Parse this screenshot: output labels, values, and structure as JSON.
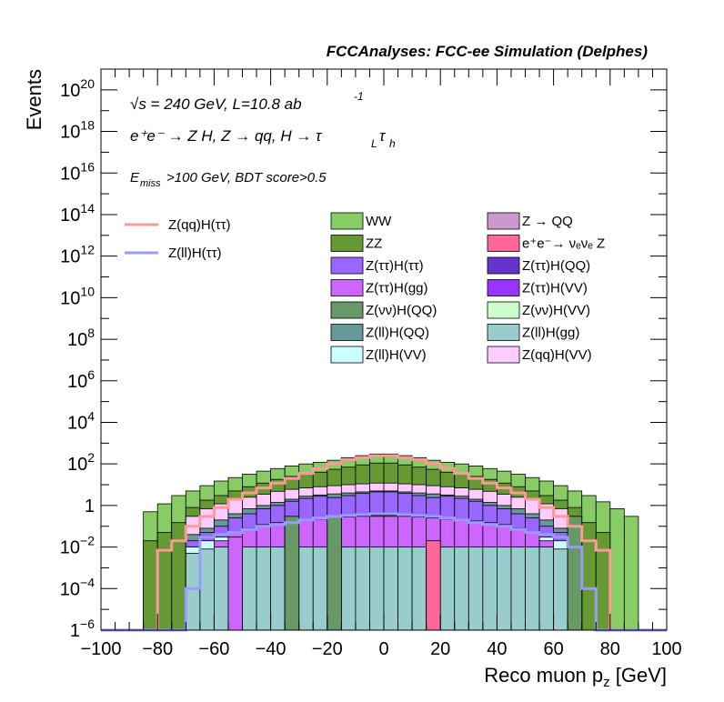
{
  "header": {
    "title": "FCCAnalyses: FCC-ee Simulation (Delphes)"
  },
  "annotations": {
    "sqrt_s": "√s = 240 GeV, L=10.8 ab",
    "lumi_exp": "-1",
    "process": "e⁺e⁻ → Z H, Z → qq, H → τ",
    "tau1_sub": "L",
    "tau2": "τ",
    "tau2_sub": "h",
    "cuts_main": "E",
    "cuts_sub": "miss",
    "cuts_rest": ">100 GeV, BDT score>0.5"
  },
  "chart_data": {
    "type": "histogram-stacked",
    "title": "FCCAnalyses: FCC-ee Simulation (Delphes)",
    "xlabel": "Reco muon p_z [GeV]",
    "ylabel": "Events",
    "xlim": [
      -100,
      100
    ],
    "ylim": [
      1e-06,
      1e+21
    ],
    "yscale": "log",
    "bin_width": 5,
    "bins_lo": [
      -100,
      -95,
      -90,
      -85,
      -80,
      -75,
      -70,
      -65,
      -60,
      -55,
      -50,
      -45,
      -40,
      -35,
      -30,
      -25,
      -20,
      -15,
      -10,
      -5,
      0,
      5,
      10,
      15,
      20,
      25,
      30,
      35,
      40,
      45,
      50,
      55,
      60,
      65,
      70,
      75,
      80,
      85,
      90,
      95
    ],
    "x_tick_labels": [
      "−100",
      "−80",
      "−60",
      "−40",
      "−20",
      "0",
      "20",
      "40",
      "60",
      "80",
      "100"
    ],
    "y_tick_labels": [
      {
        "b": "1",
        "e": "−6"
      },
      {
        "b": "10",
        "e": "−4"
      },
      {
        "b": "10",
        "e": "−2"
      },
      {
        "b": "1",
        "e": ""
      },
      {
        "b": "10",
        "e": "2"
      },
      {
        "b": "10",
        "e": "4"
      },
      {
        "b": "10",
        "e": "6"
      },
      {
        "b": "10",
        "e": "8"
      },
      {
        "b": "10",
        "e": "10"
      },
      {
        "b": "10",
        "e": "12"
      },
      {
        "b": "10",
        "e": "14"
      },
      {
        "b": "10",
        "e": "16"
      },
      {
        "b": "10",
        "e": "18"
      },
      {
        "b": "10",
        "e": "20"
      }
    ],
    "stack_totals": {
      "WW": [
        0,
        0,
        0,
        0.5,
        1.2,
        3,
        5,
        9,
        15,
        22,
        32,
        45,
        60,
        80,
        100,
        120,
        150,
        200,
        250,
        300,
        300,
        250,
        200,
        150,
        120,
        100,
        80,
        60,
        45,
        32,
        22,
        15,
        9,
        5,
        3,
        1.5,
        0.7,
        0.3,
        0,
        0
      ],
      "ZZ": [
        0,
        0,
        0,
        0.02,
        0.05,
        0.15,
        0.8,
        1.8,
        3,
        5,
        8,
        12,
        18,
        25,
        32,
        40,
        55,
        70,
        90,
        110,
        110,
        90,
        70,
        55,
        40,
        32,
        25,
        18,
        12,
        8,
        5,
        3,
        1.8,
        0.8,
        0.15,
        0.05,
        0,
        0,
        0,
        0
      ],
      "Z(qq)H(VV)": [
        0,
        0,
        0,
        0,
        0,
        0,
        0.3,
        0.7,
        1.2,
        1.8,
        2.5,
        3.5,
        4.8,
        6,
        7,
        8,
        9,
        10,
        11,
        12,
        12,
        11,
        10,
        9,
        8,
        7,
        6,
        4.8,
        3.5,
        2.5,
        1.8,
        1.2,
        0.7,
        0.3,
        0,
        0,
        0,
        0,
        0,
        0
      ],
      "Z(ll)H(QQ)": [
        0,
        0,
        0,
        0,
        0,
        0,
        0.04,
        0.08,
        0.2,
        0.4,
        0.7,
        1,
        1.4,
        2,
        2.8,
        3.2,
        3.6,
        4,
        4.5,
        5,
        5,
        4.5,
        4,
        3.6,
        3.2,
        2.8,
        2,
        1.4,
        1,
        0.7,
        0.4,
        0.2,
        0.08,
        0.04,
        0,
        0,
        0,
        0,
        0,
        0
      ],
      "Z(tautau)H(tautau)": [
        0,
        0,
        0,
        0,
        0,
        0,
        0.02,
        0.05,
        0.1,
        0.25,
        0.4,
        0.7,
        1,
        1.6,
        2.2,
        2.8,
        2.4,
        3,
        3.8,
        4.5,
        4.5,
        3.8,
        3,
        2.4,
        2.8,
        2.2,
        1.6,
        1,
        0.7,
        0.4,
        0.25,
        0.1,
        0.05,
        0.02,
        0,
        0,
        0,
        0,
        0,
        0
      ],
      "Z(ll)H(VV)": [
        0,
        0,
        0,
        0,
        0,
        0,
        0.01,
        0.02,
        0.03,
        0.05,
        0.07,
        0.1,
        0.13,
        0.17,
        0.2,
        0.24,
        0.27,
        0.3,
        0.32,
        0.33,
        0.33,
        0.32,
        0.3,
        0.27,
        0.24,
        0.2,
        0.17,
        0.13,
        0.1,
        0.07,
        0.05,
        0.03,
        0.02,
        0.01,
        0,
        0,
        0,
        0,
        0,
        0
      ],
      "Z(tautau)H(gg)": [
        0,
        0,
        0,
        0,
        0,
        0,
        0,
        0,
        0.02,
        0.05,
        0.08,
        0.12,
        0.15,
        0.18,
        0.2,
        0.22,
        0.25,
        0.28,
        0.3,
        0.3,
        0.3,
        0.3,
        0.28,
        0.25,
        0.22,
        0.2,
        0.18,
        0.15,
        0.12,
        0.08,
        0.05,
        0.02,
        0,
        0,
        0,
        0,
        0,
        0,
        0,
        0
      ],
      "Z(ll)H(gg)": [
        0,
        0,
        0,
        0,
        0,
        0,
        0.005,
        0.008,
        0.01,
        0.01,
        0.01,
        0.01,
        0.01,
        0.01,
        0.01,
        0.01,
        0.01,
        0.01,
        0.01,
        0.01,
        0.01,
        0.01,
        0.01,
        0.01,
        0.01,
        0.01,
        0.01,
        0.01,
        0.01,
        0.01,
        0.01,
        0.01,
        0.008,
        0.005,
        0,
        0,
        0,
        0,
        0,
        0
      ]
    },
    "series": [
      {
        "name": "WW",
        "color": "#88cc66",
        "legend": "fill"
      },
      {
        "name": "ZZ",
        "color": "#669933",
        "legend": "fill"
      },
      {
        "name": "Z(ττ)H(ττ)",
        "color": "#9966ff",
        "legend": "fill"
      },
      {
        "name": "Z(ττ)H(gg)",
        "color": "#cc66ff",
        "legend": "fill"
      },
      {
        "name": "Z(νν)H(QQ)",
        "color": "#669966",
        "legend": "fill"
      },
      {
        "name": "Z(ll)H(QQ)",
        "color": "#669999",
        "legend": "fill"
      },
      {
        "name": "Z(ll)H(VV)",
        "color": "#ccffff",
        "legend": "fill"
      },
      {
        "name": "Z → QQ",
        "color": "#cc99cc",
        "legend": "fill"
      },
      {
        "name": "e⁺e⁻→ νₑνₑ Z",
        "color": "#ff6699",
        "legend": "fill"
      },
      {
        "name": "Z(ττ)H(QQ)",
        "color": "#6633cc",
        "legend": "fill"
      },
      {
        "name": "Z(ττ)H(VV)",
        "color": "#9933ff",
        "legend": "fill"
      },
      {
        "name": "Z(νν)H(VV)",
        "color": "#ccffcc",
        "legend": "fill"
      },
      {
        "name": "Z(ll)H(gg)",
        "color": "#99cccc",
        "legend": "fill"
      },
      {
        "name": "Z(qq)H(VV)",
        "color": "#ffccff",
        "legend": "fill"
      },
      {
        "name": "Z(qq)H(ττ)",
        "color": "#ff9999",
        "legend": "line",
        "values": [
          0,
          0,
          0,
          0,
          0.007,
          0.02,
          0.1,
          0.3,
          0.8,
          2,
          4,
          7,
          12,
          20,
          35,
          60,
          100,
          160,
          200,
          250,
          250,
          200,
          160,
          100,
          60,
          35,
          20,
          12,
          7,
          4,
          2,
          0.8,
          0.3,
          0.1,
          0.02,
          0.007,
          0,
          0,
          0,
          0
        ]
      },
      {
        "name": "Z(ll)H(ττ)",
        "color": "#9999ff",
        "legend": "line",
        "values": [
          0,
          0,
          0,
          0,
          0,
          0,
          0.0001,
          0.03,
          0.04,
          0.05,
          0.07,
          0.1,
          0.12,
          0.15,
          0.2,
          0.25,
          0.3,
          0.33,
          0.36,
          0.4,
          0.4,
          0.36,
          0.33,
          0.3,
          0.25,
          0.2,
          0.15,
          0.12,
          0.1,
          0.07,
          0.05,
          0.04,
          0.03,
          0.01,
          0.0001,
          0,
          0,
          0,
          0,
          0
        ]
      }
    ],
    "spikes": [
      {
        "x": 15,
        "value": 0.02,
        "color": "#ff6699"
      },
      {
        "x": -55,
        "value": 0.03,
        "color": "#cc66ff"
      },
      {
        "x": -20,
        "value": 0.3,
        "color": "#669966"
      },
      {
        "x": -35,
        "value": 0.3,
        "color": "#669966"
      },
      {
        "x": 65,
        "value": 0.3,
        "color": "#669966"
      }
    ],
    "legend_placement": "upper-right"
  }
}
